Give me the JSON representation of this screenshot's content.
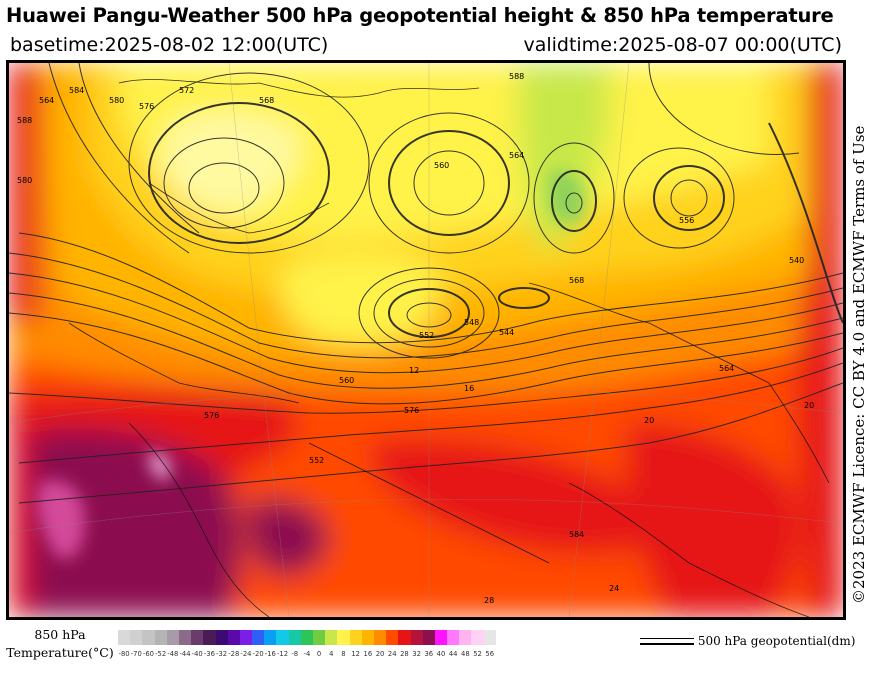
{
  "title": "Huawei Pangu-Weather 500 hPa geopotential height & 850 hPa temperature",
  "basetime": "basetime:2025-08-02 12:00(UTC)",
  "validtime": "validtime:2025-08-07 00:00(UTC)",
  "license": "©2023 ECMWF Licence: CC BY 4.0 and ECMWF Terms of Use",
  "legend": {
    "temp_label_line1": "850 hPa",
    "temp_label_line2": "Temperature(°C)",
    "tick_labels": [
      "-80",
      "-70",
      "-60",
      "-52",
      "-48",
      "-44",
      "-40",
      "-36",
      "-32",
      "-28",
      "-24",
      "-20",
      "-16",
      "-12",
      "-8",
      "-4",
      "0",
      "4",
      "8",
      "12",
      "16",
      "20",
      "24",
      "28",
      "32",
      "36",
      "40",
      "44",
      "48",
      "52",
      "56"
    ],
    "colors": [
      "#d9d9d9",
      "#d0d0d0",
      "#c4c4c4",
      "#b4b4b4",
      "#a99aa9",
      "#8c6a8c",
      "#6b3b6b",
      "#4b1b55",
      "#3b0a73",
      "#5a0aa8",
      "#7d1ee8",
      "#2f5ff5",
      "#0a9ff2",
      "#12c9e8",
      "#14c8a8",
      "#2ec45a",
      "#70cc40",
      "#c8e84a",
      "#fff24a",
      "#ffd21e",
      "#ffb400",
      "#ff8c00",
      "#ff4a00",
      "#e61414",
      "#b4143c",
      "#8c0f50",
      "#ff14ff",
      "#ff78ff",
      "#ffb4f0",
      "#ffd2f5",
      "#e6e6e6"
    ],
    "geopotential_label": "500 hPa geopotential(dm)"
  },
  "map": {
    "contour_labels": [
      "588",
      "584",
      "580",
      "576",
      "572",
      "568",
      "564",
      "560",
      "556",
      "552",
      "548",
      "544",
      "540",
      "576",
      "564",
      "560",
      "552",
      "568",
      "564",
      "580",
      "588",
      "584",
      "576"
    ],
    "temperature_labels": [
      "20",
      "24",
      "28",
      "16",
      "12",
      "20"
    ]
  }
}
